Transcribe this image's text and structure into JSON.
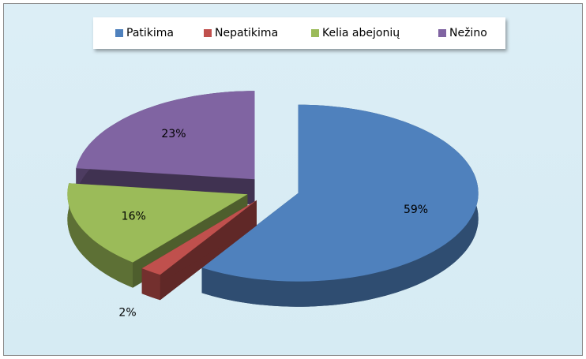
{
  "chart_data": {
    "type": "pie",
    "categories": [
      "Patikima",
      "Nepatikima",
      "Kelia abejonių",
      "Nežino"
    ],
    "values": [
      59,
      2,
      16,
      23
    ],
    "value_labels": [
      "59%",
      "2%",
      "16%",
      "23%"
    ],
    "colors": [
      "#4f81bd",
      "#c0504d",
      "#9bbb59",
      "#8064a2"
    ],
    "legend": "top"
  }
}
